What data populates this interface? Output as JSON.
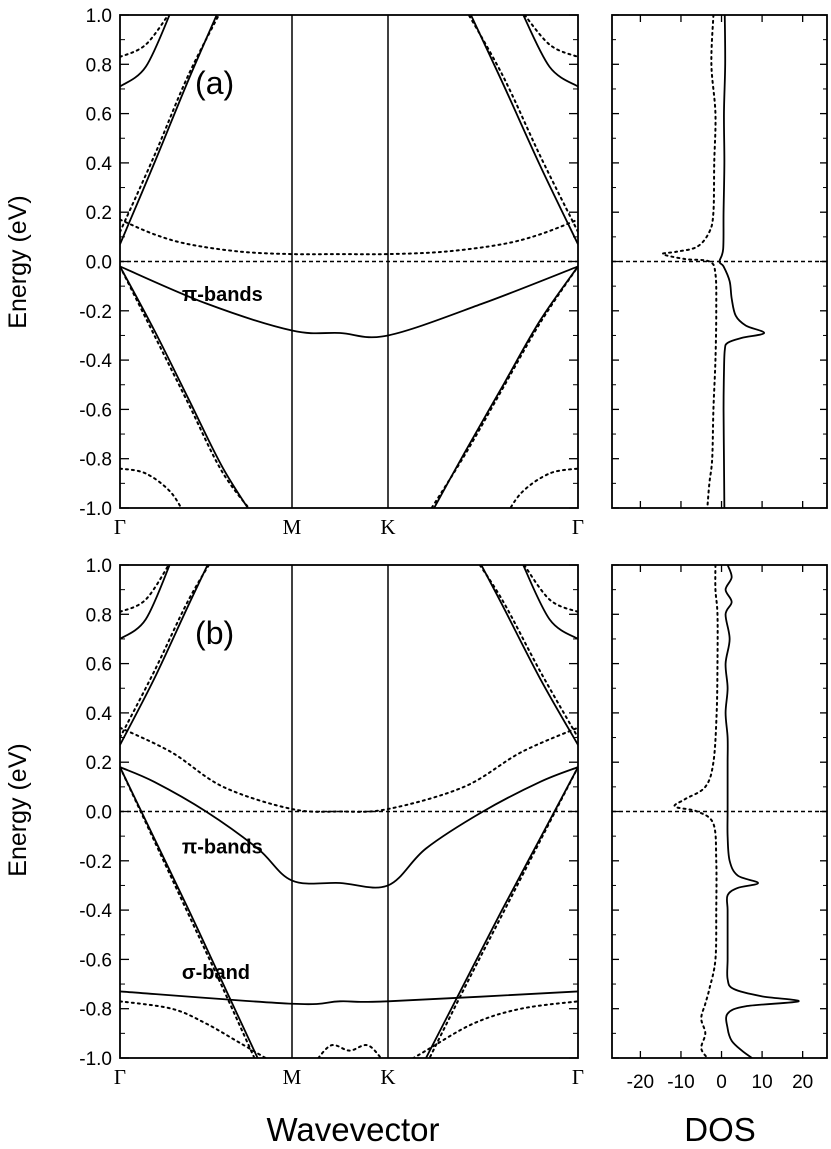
{
  "chart_data": {
    "type": "line",
    "ylabel": "Energy (eV)",
    "xlabel": "Wavevector",
    "dos_xlabel": "DOS",
    "ylim": [
      -1.0,
      1.0
    ],
    "yticks": [
      "1.0",
      "0.8",
      "0.6",
      "0.4",
      "0.2",
      "0.0",
      "-0.2",
      "-0.4",
      "-0.6",
      "-0.8",
      "-1.0"
    ],
    "kpoints": [
      "Γ",
      "M",
      "K",
      "Γ"
    ],
    "dos_xlim": [
      -27,
      26
    ],
    "dos_xticks": [
      "-20",
      "-10",
      "0",
      "10",
      "20"
    ],
    "line_styles": {
      "spin_up": "solid",
      "spin_down": "dotted",
      "fermi_level": "dashed"
    },
    "panels": [
      {
        "label": "(a)",
        "annotations": [
          {
            "text": "π-bands",
            "x": 0.36,
            "y": -0.16
          }
        ],
        "bands": [
          {
            "style": "solid",
            "x": [
              0,
              0.5,
              1,
              1.5,
              2,
              2.5,
              3
            ],
            "y": [
              -0.02,
              -0.17,
              -0.28,
              -0.29,
              -0.3,
              -0.17,
              -0.02
            ]
          },
          {
            "style": "solid",
            "x": [
              0,
              0.2,
              0.4,
              0.6,
              0.8
            ],
            "y": [
              -0.02,
              -0.28,
              -0.56,
              -0.84,
              -1.06
            ]
          },
          {
            "style": "solid",
            "x": [
              2.2,
              2.4,
              2.6,
              2.8,
              3
            ],
            "y": [
              -1.06,
              -0.78,
              -0.51,
              -0.24,
              -0.02
            ]
          },
          {
            "style": "solid",
            "x": [
              0,
              0.2,
              0.4,
              0.6
            ],
            "y": [
              0.07,
              0.4,
              0.74,
              1.06
            ]
          },
          {
            "style": "solid",
            "x": [
              2.4,
              2.6,
              2.8,
              3
            ],
            "y": [
              1.06,
              0.73,
              0.39,
              0.07
            ]
          },
          {
            "style": "solid",
            "x": [
              0,
              0.15,
              0.3
            ],
            "y": [
              0.71,
              0.79,
              1.02
            ]
          },
          {
            "style": "solid",
            "x": [
              2.7,
              2.85,
              3
            ],
            "y": [
              1.02,
              0.79,
              0.71
            ]
          },
          {
            "style": "dotted",
            "x": [
              0,
              0.2,
              0.4,
              0.7,
              1,
              1.5,
              2,
              2.3,
              2.6,
              2.8,
              3
            ],
            "y": [
              0.17,
              0.11,
              0.07,
              0.04,
              0.03,
              0.03,
              0.03,
              0.04,
              0.07,
              0.11,
              0.17
            ]
          },
          {
            "style": "dotted",
            "x": [
              0,
              0.2,
              0.4,
              0.6,
              0.82
            ],
            "y": [
              -0.02,
              -0.3,
              -0.58,
              -0.86,
              -1.06
            ]
          },
          {
            "style": "dotted",
            "x": [
              2.18,
              2.4,
              2.6,
              2.8,
              3
            ],
            "y": [
              -1.06,
              -0.79,
              -0.52,
              -0.25,
              -0.02
            ]
          },
          {
            "style": "dotted",
            "x": [
              0,
              0.2,
              0.4,
              0.62
            ],
            "y": [
              0.12,
              0.43,
              0.76,
              1.06
            ]
          },
          {
            "style": "dotted",
            "x": [
              2.38,
              2.6,
              2.8,
              3
            ],
            "y": [
              1.06,
              0.76,
              0.43,
              0.12
            ]
          },
          {
            "style": "dotted",
            "x": [
              0,
              0.15,
              0.3
            ],
            "y": [
              0.83,
              0.88,
              1.02
            ]
          },
          {
            "style": "dotted",
            "x": [
              2.7,
              2.85,
              3
            ],
            "y": [
              1.02,
              0.88,
              0.83
            ]
          },
          {
            "style": "dotted",
            "x": [
              0,
              0.15,
              0.3,
              0.4
            ],
            "y": [
              -0.84,
              -0.86,
              -0.94,
              -1.06
            ]
          },
          {
            "style": "dotted",
            "x": [
              2.6,
              2.7,
              2.85,
              3
            ],
            "y": [
              -1.06,
              -0.94,
              -0.86,
              -0.84
            ]
          }
        ],
        "dos": [
          {
            "style": "solid",
            "e": [
              1.0,
              0.8,
              0.6,
              0.4,
              0.2,
              0.05,
              0.0,
              -0.02,
              -0.08,
              -0.15,
              -0.22,
              -0.26,
              -0.29,
              -0.31,
              -0.33,
              -0.36,
              -0.45,
              -0.6,
              -0.8,
              -1.0
            ],
            "v": [
              0.8,
              0.9,
              0.6,
              0.7,
              0.5,
              0.4,
              -0.5,
              0.5,
              2.0,
              2.5,
              3.5,
              6.0,
              10.5,
              5.0,
              1.5,
              0.8,
              0.6,
              0.5,
              0.6,
              0.7
            ]
          },
          {
            "style": "dotted",
            "e": [
              1.0,
              0.8,
              0.6,
              0.4,
              0.2,
              0.12,
              0.06,
              0.04,
              0.03,
              0.01,
              0.0,
              -0.05,
              -0.2,
              -0.4,
              -0.6,
              -0.8,
              -0.9,
              -1.0
            ],
            "v": [
              -2.0,
              -2.5,
              -1.5,
              -1.8,
              -2.0,
              -3.0,
              -6.0,
              -11.0,
              -14.5,
              -9.0,
              -3.0,
              -1.5,
              -1.3,
              -1.5,
              -2.0,
              -2.3,
              -3.0,
              -3.5
            ]
          }
        ]
      },
      {
        "label": "(b)",
        "annotations": [
          {
            "text": "π-bands",
            "x": 0.36,
            "y": -0.17
          },
          {
            "text": "σ-band",
            "x": 0.36,
            "y": -0.68
          }
        ],
        "bands": [
          {
            "style": "solid",
            "x": [
              0,
              0.2,
              0.5,
              0.8,
              1,
              1.5,
              2,
              2.2,
              2.5,
              2.8,
              3
            ],
            "y": [
              0.18,
              0.12,
              0.0,
              -0.15,
              -0.28,
              -0.29,
              -0.3,
              -0.15,
              0.0,
              0.12,
              0.18
            ]
          },
          {
            "style": "solid",
            "x": [
              0,
              0.2,
              0.4,
              0.6,
              0.84
            ],
            "y": [
              0.18,
              -0.11,
              -0.4,
              -0.7,
              -1.06
            ]
          },
          {
            "style": "solid",
            "x": [
              2.16,
              2.4,
              2.6,
              2.8,
              3
            ],
            "y": [
              -1.06,
              -0.7,
              -0.4,
              -0.11,
              0.18
            ]
          },
          {
            "style": "solid",
            "x": [
              0,
              1,
              1.5,
              2,
              3
            ],
            "y": [
              -0.73,
              -0.78,
              -0.77,
              -0.77,
              -0.73
            ]
          },
          {
            "style": "solid",
            "x": [
              0,
              0.2,
              0.4,
              0.55
            ],
            "y": [
              0.27,
              0.54,
              0.84,
              1.06
            ]
          },
          {
            "style": "solid",
            "x": [
              2.45,
              2.6,
              2.8,
              3
            ],
            "y": [
              1.06,
              0.84,
              0.54,
              0.27
            ]
          },
          {
            "style": "solid",
            "x": [
              0,
              0.15,
              0.3
            ],
            "y": [
              0.7,
              0.78,
              1.02
            ]
          },
          {
            "style": "solid",
            "x": [
              2.7,
              2.85,
              3
            ],
            "y": [
              1.02,
              0.78,
              0.7
            ]
          },
          {
            "style": "dotted",
            "x": [
              0,
              0.3,
              0.6,
              1,
              1.5,
              2,
              2.4,
              2.7,
              3
            ],
            "y": [
              0.34,
              0.24,
              0.1,
              0.01,
              0.0,
              0.01,
              0.1,
              0.24,
              0.34
            ]
          },
          {
            "style": "dotted",
            "x": [
              0,
              0.2,
              0.4,
              0.6,
              0.82
            ],
            "y": [
              0.18,
              -0.12,
              -0.42,
              -0.72,
              -1.06
            ]
          },
          {
            "style": "dotted",
            "x": [
              2.18,
              2.4,
              2.6,
              2.8,
              3
            ],
            "y": [
              -1.06,
              -0.72,
              -0.42,
              -0.12,
              0.18
            ]
          },
          {
            "style": "dotted",
            "x": [
              0,
              0.2,
              0.4,
              0.57
            ],
            "y": [
              0.3,
              0.57,
              0.86,
              1.06
            ]
          },
          {
            "style": "dotted",
            "x": [
              2.43,
              2.6,
              2.8,
              3
            ],
            "y": [
              1.06,
              0.86,
              0.57,
              0.3
            ]
          },
          {
            "style": "dotted",
            "x": [
              0,
              0.15,
              0.3
            ],
            "y": [
              0.81,
              0.86,
              1.02
            ]
          },
          {
            "style": "dotted",
            "x": [
              2.7,
              2.85,
              3
            ],
            "y": [
              1.02,
              0.86,
              0.81
            ]
          },
          {
            "style": "dotted",
            "x": [
              0,
              0.3,
              0.5,
              0.7,
              0.9,
              1.0
            ],
            "y": [
              -0.77,
              -0.8,
              -0.86,
              -0.94,
              -1.02,
              -1.04
            ]
          },
          {
            "style": "dotted",
            "x": [
              1.2,
              1.4,
              1.6,
              1.8,
              2.0
            ],
            "y": [
              -1.04,
              -0.95,
              -0.97,
              -0.95,
              -1.04
            ]
          },
          {
            "style": "dotted",
            "x": [
              2.05,
              2.2,
              2.45,
              2.7,
              3
            ],
            "y": [
              -1.04,
              -0.97,
              -0.86,
              -0.8,
              -0.77
            ]
          }
        ],
        "dos": [
          {
            "style": "solid",
            "e": [
              1.0,
              0.95,
              0.9,
              0.85,
              0.8,
              0.7,
              0.6,
              0.5,
              0.4,
              0.3,
              0.2,
              0.1,
              0.0,
              -0.1,
              -0.2,
              -0.26,
              -0.29,
              -0.31,
              -0.34,
              -0.4,
              -0.5,
              -0.6,
              -0.68,
              -0.72,
              -0.75,
              -0.77,
              -0.79,
              -0.82,
              -0.88,
              -0.93,
              -0.97,
              -1.0
            ],
            "v": [
              1.5,
              2.5,
              1.0,
              2.5,
              1.0,
              2.0,
              1.0,
              1.5,
              1.0,
              1.5,
              1.5,
              1.5,
              1.5,
              1.5,
              2.0,
              4.0,
              9.0,
              4.0,
              1.5,
              1.5,
              1.5,
              1.5,
              1.5,
              3.0,
              10.0,
              19.0,
              6.0,
              1.5,
              1.5,
              2.5,
              5.0,
              7.5
            ]
          },
          {
            "style": "dotted",
            "e": [
              1.0,
              0.9,
              0.8,
              0.6,
              0.4,
              0.2,
              0.1,
              0.05,
              0.02,
              0.0,
              -0.05,
              -0.2,
              -0.4,
              -0.6,
              -0.72,
              -0.78,
              -0.84,
              -0.9,
              -0.96,
              -1.0
            ],
            "v": [
              -1.5,
              -1.5,
              -1.0,
              -1.0,
              -1.2,
              -2.0,
              -4.0,
              -9.0,
              -11.5,
              -6.0,
              -2.0,
              -1.3,
              -1.3,
              -1.5,
              -3.0,
              -4.0,
              -5.0,
              -4.0,
              -5.0,
              -3.5
            ]
          }
        ]
      }
    ]
  }
}
